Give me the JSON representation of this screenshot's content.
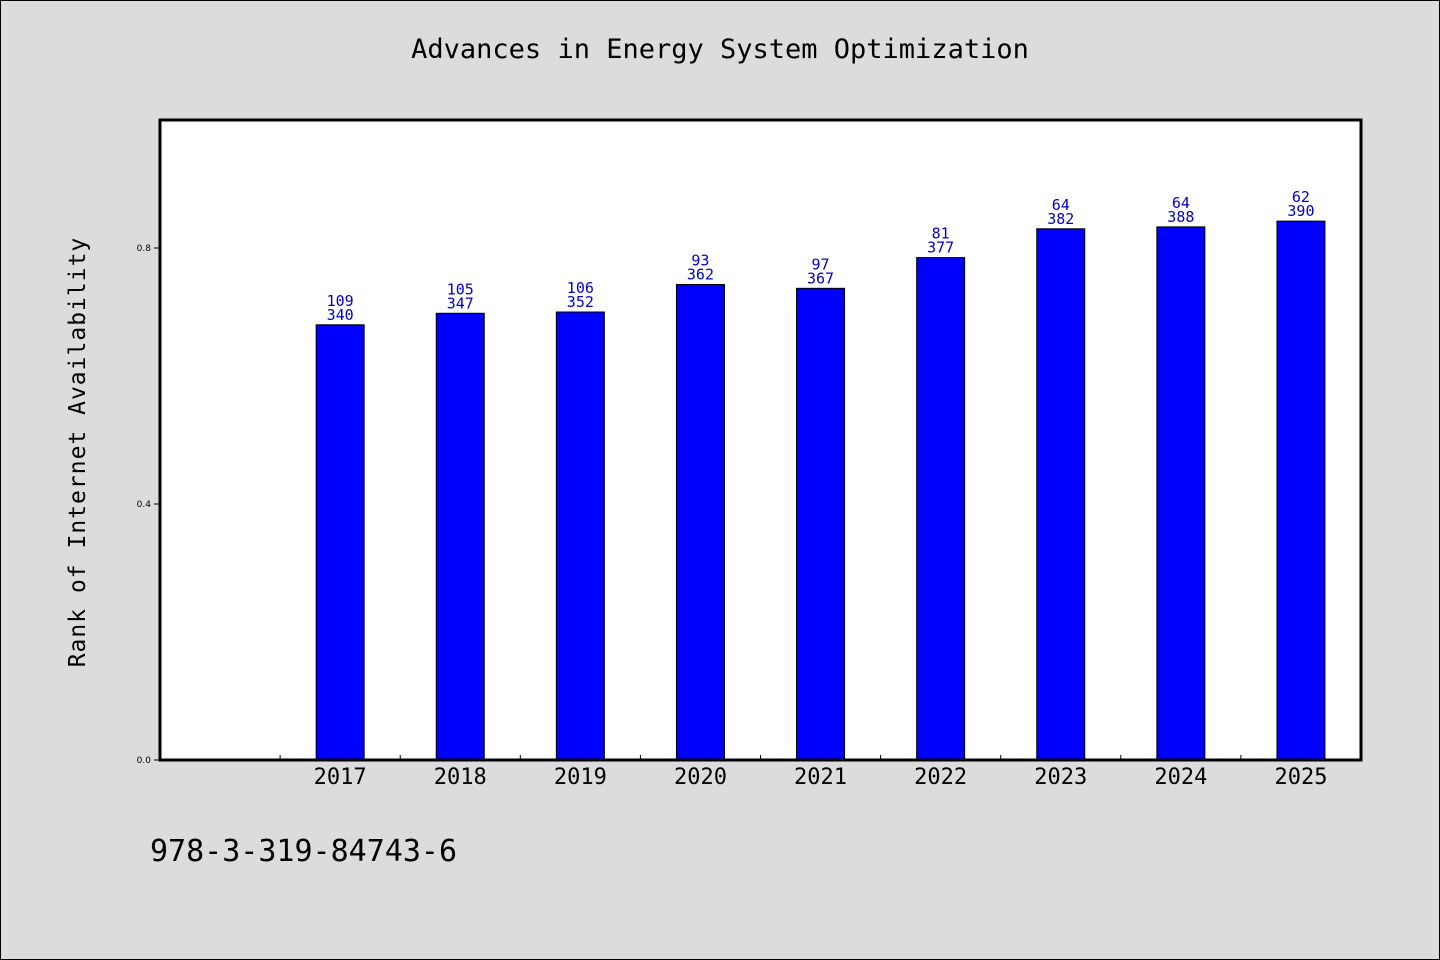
{
  "chart_data": {
    "type": "bar",
    "title": "Advances in Energy System Optimization",
    "xlabel": "",
    "ylabel": "Rank of Internet Availability",
    "categories": [
      "2017",
      "2018",
      "2019",
      "2020",
      "2021",
      "2022",
      "2023",
      "2024",
      "2025"
    ],
    "values": [
      0.68,
      0.698,
      0.7,
      0.743,
      0.737,
      0.785,
      0.83,
      0.833,
      0.842
    ],
    "label_top": [
      "109",
      "105",
      "106",
      "93",
      "97",
      "81",
      "64",
      "64",
      "62"
    ],
    "label_bottom": [
      "340",
      "347",
      "352",
      "362",
      "367",
      "377",
      "382",
      "388",
      "390"
    ],
    "yticks": [
      {
        "value": 0.0,
        "label": "0.0"
      },
      {
        "value": 0.4,
        "label": "0.4"
      },
      {
        "value": 0.8,
        "label": "0.8"
      }
    ],
    "ylim": [
      0,
      1.0
    ],
    "grid": false,
    "legend": "none",
    "bar_color": "#0000ff",
    "label_color": "#0000cc",
    "background": "#dcdcdc",
    "plot_background": "#ffffff"
  },
  "footer": {
    "isbn": "978-3-319-84743-6"
  }
}
